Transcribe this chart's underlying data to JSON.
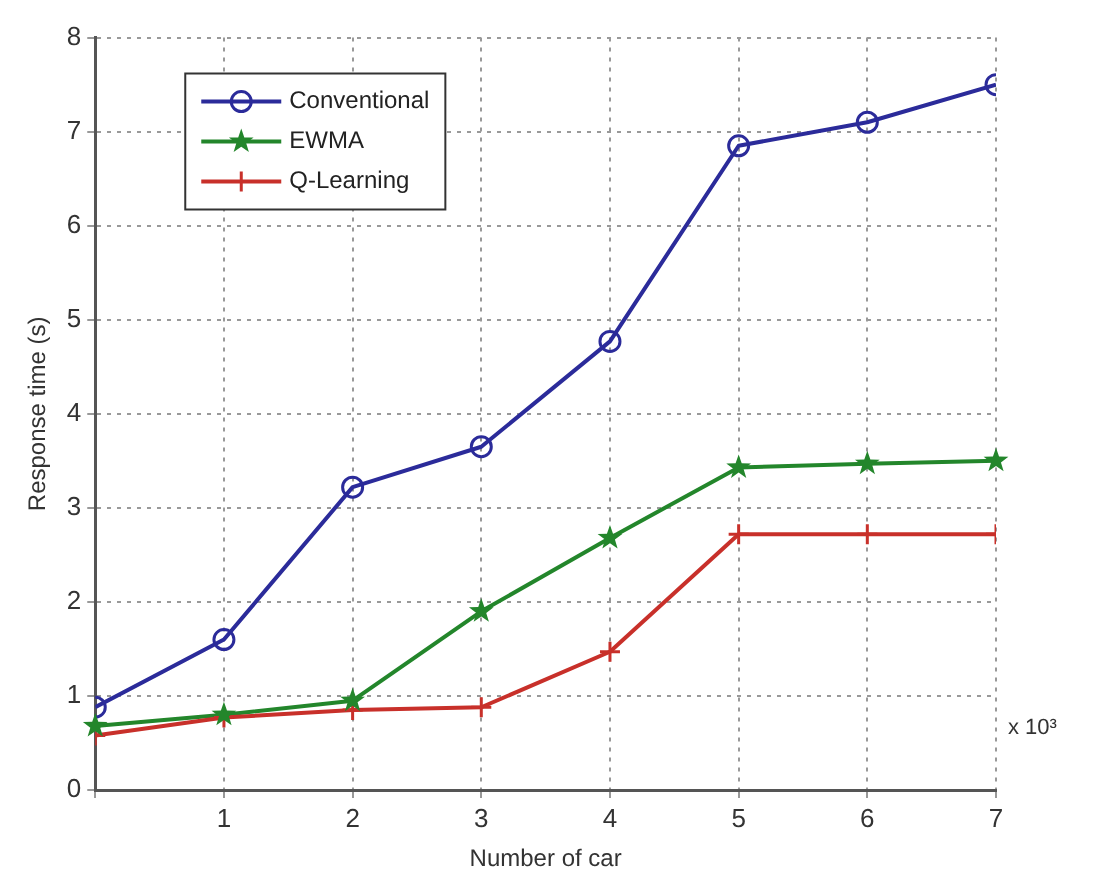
{
  "chart_data": {
    "type": "line",
    "xlabel": "Number of car",
    "ylabel": "Response time (s)",
    "x": [
      0,
      1,
      2,
      3,
      4,
      5,
      6,
      7
    ],
    "series": [
      {
        "name": "Conventional",
        "color": "#2b2b9a",
        "marker": "circle",
        "values": [
          0.88,
          1.6,
          3.22,
          3.65,
          4.77,
          6.85,
          7.1,
          7.5
        ]
      },
      {
        "name": "EWMA",
        "color": "#23862b",
        "marker": "star",
        "values": [
          0.68,
          0.8,
          0.95,
          1.9,
          2.68,
          3.43,
          3.47,
          3.5
        ]
      },
      {
        "name": "Q-Learning",
        "color": "#c8302a",
        "marker": "cross",
        "values": [
          0.58,
          0.77,
          0.85,
          0.88,
          1.47,
          2.72,
          2.72,
          2.72
        ]
      }
    ],
    "xlim": [
      0,
      7
    ],
    "xticks": [
      {
        "value": 0,
        "label": null
      },
      1,
      2,
      3,
      4,
      5,
      6,
      7
    ],
    "ylim": [
      0,
      8
    ],
    "yticks": [
      0,
      1,
      2,
      3,
      4,
      5,
      6,
      7,
      8
    ],
    "annotations": [
      "x 10³"
    ],
    "grid": true,
    "legend": "top left",
    "line_style": "solid"
  }
}
